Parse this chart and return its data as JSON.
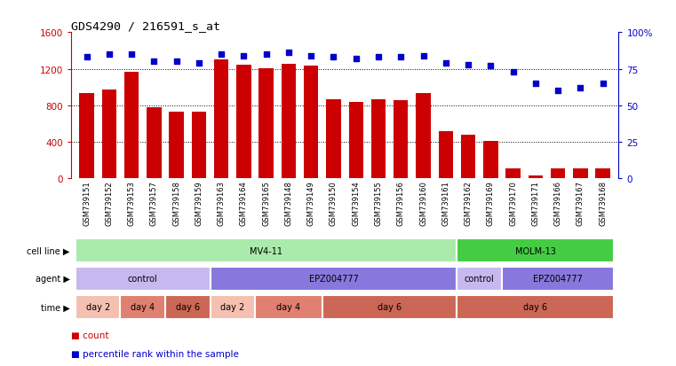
{
  "title": "GDS4290 / 216591_s_at",
  "samples": [
    "GSM739151",
    "GSM739152",
    "GSM739153",
    "GSM739157",
    "GSM739158",
    "GSM739159",
    "GSM739163",
    "GSM739164",
    "GSM739165",
    "GSM739148",
    "GSM739149",
    "GSM739150",
    "GSM739154",
    "GSM739155",
    "GSM739156",
    "GSM739160",
    "GSM739161",
    "GSM739162",
    "GSM739169",
    "GSM739170",
    "GSM739171",
    "GSM739166",
    "GSM739167",
    "GSM739168"
  ],
  "bar_heights": [
    930,
    970,
    1170,
    780,
    730,
    730,
    1300,
    1240,
    1210,
    1250,
    1230,
    870,
    840,
    870,
    860,
    930,
    520,
    480,
    410,
    110,
    30,
    110,
    110,
    110
  ],
  "percentile": [
    83,
    85,
    85,
    80,
    80,
    79,
    85,
    84,
    85,
    86,
    84,
    83,
    82,
    83,
    83,
    84,
    79,
    78,
    77,
    73,
    65,
    60,
    62,
    65
  ],
  "bar_color": "#cc0000",
  "dot_color": "#0000cc",
  "ylim_left": [
    0,
    1600
  ],
  "ylim_right": [
    0,
    100
  ],
  "yticks_left": [
    0,
    400,
    800,
    1200,
    1600
  ],
  "ytick_labels_left": [
    "0",
    "400",
    "800",
    "1200",
    "1600"
  ],
  "yticks_right": [
    0,
    25,
    50,
    75,
    100
  ],
  "ytick_labels_right": [
    "0",
    "25",
    "50",
    "75",
    "100%"
  ],
  "cell_segs": [
    {
      "label": "MV4-11",
      "start": 0,
      "end": 17,
      "color": "#aaeaaa"
    },
    {
      "label": "MOLM-13",
      "start": 17,
      "end": 24,
      "color": "#44cc44"
    }
  ],
  "agent_segs": [
    {
      "label": "control",
      "start": 0,
      "end": 6,
      "color": "#c8b8f0"
    },
    {
      "label": "EPZ004777",
      "start": 6,
      "end": 17,
      "color": "#8877dd"
    },
    {
      "label": "control",
      "start": 17,
      "end": 19,
      "color": "#c8b8f0"
    },
    {
      "label": "EPZ004777",
      "start": 19,
      "end": 24,
      "color": "#8877dd"
    }
  ],
  "time_segs": [
    {
      "label": "day 2",
      "start": 0,
      "end": 2,
      "color": "#f5c0b0"
    },
    {
      "label": "day 4",
      "start": 2,
      "end": 4,
      "color": "#e08070"
    },
    {
      "label": "day 6",
      "start": 4,
      "end": 6,
      "color": "#cc6655"
    },
    {
      "label": "day 2",
      "start": 6,
      "end": 8,
      "color": "#f5c0b0"
    },
    {
      "label": "day 4",
      "start": 8,
      "end": 11,
      "color": "#e08070"
    },
    {
      "label": "day 6",
      "start": 11,
      "end": 17,
      "color": "#cc6655"
    },
    {
      "label": "day 6",
      "start": 17,
      "end": 24,
      "color": "#cc6655"
    }
  ],
  "legend_count_color": "#cc0000",
  "legend_dot_color": "#0000cc",
  "background_color": "#ffffff",
  "left_tick_color": "#cc0000",
  "right_tick_color": "#0000cc",
  "row_labels": [
    "cell line",
    "agent",
    "time"
  ],
  "figsize": [
    7.61,
    4.14
  ],
  "dpi": 100
}
